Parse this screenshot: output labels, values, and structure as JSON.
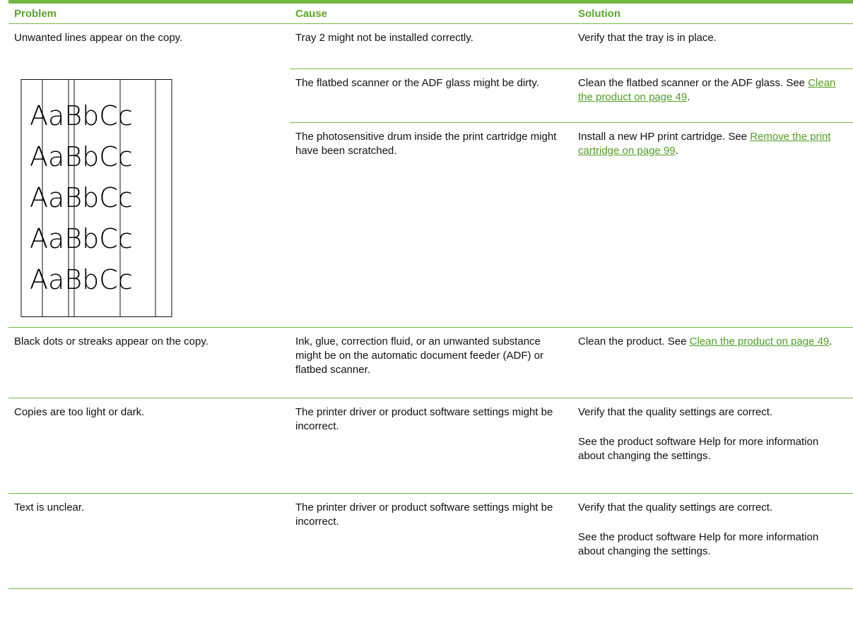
{
  "header": {
    "problem": "Problem",
    "cause": "Cause",
    "solution": "Solution"
  },
  "illustration_text": "AaBbCc",
  "rows": [
    {
      "problem": "Unwanted lines appear on the copy.",
      "entries": [
        {
          "cause": "Tray 2 might not be installed correctly.",
          "solution": [
            {
              "text": "Verify that the tray is in place."
            }
          ]
        },
        {
          "cause": "The flatbed scanner or the ADF glass might be dirty.",
          "solution": [
            {
              "text": "Clean the flatbed scanner or the ADF glass. See ",
              "link": "Clean the product on page 49",
              "after": "."
            }
          ]
        },
        {
          "cause": "The photosensitive drum inside the print cartridge might have been scratched.",
          "solution": [
            {
              "text": "Install a new HP print cartridge. See ",
              "link": "Remove the print cartridge on page 99",
              "after": "."
            }
          ]
        }
      ]
    },
    {
      "problem": "Black dots or streaks appear on the copy.",
      "entries": [
        {
          "cause": "Ink, glue, correction fluid, or an unwanted substance might be on the automatic document feeder (ADF) or flatbed scanner.",
          "solution": [
            {
              "text": "Clean the product. See ",
              "link": "Clean the product on page 49",
              "after": "."
            }
          ]
        }
      ]
    },
    {
      "problem": "Copies are too light or dark.",
      "entries": [
        {
          "cause": "The printer driver or product software settings might be incorrect.",
          "solution": [
            {
              "text": "Verify that the quality settings are correct."
            },
            {
              "text": "See the product software Help for more information about changing the settings."
            }
          ]
        }
      ]
    },
    {
      "problem": "Text is unclear.",
      "entries": [
        {
          "cause": "The printer driver or product software settings might be incorrect.",
          "solution": [
            {
              "text": "Verify that the quality settings are correct."
            },
            {
              "text": "See the product software Help for more information about changing the settings."
            }
          ]
        }
      ]
    }
  ]
}
